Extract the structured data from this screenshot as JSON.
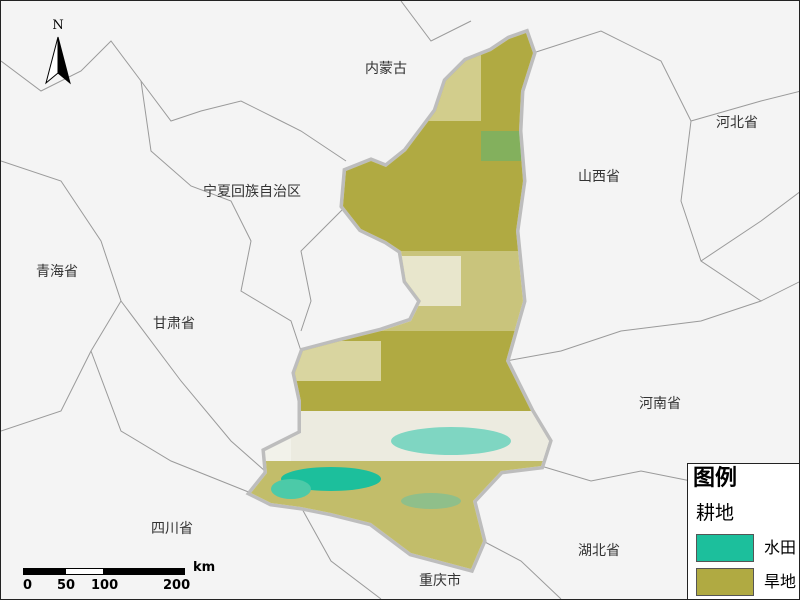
{
  "north_arrow": {
    "label": "N"
  },
  "provinces": {
    "nei_menggu": "内蒙古",
    "shanxi": "山西省",
    "hebei": "河北省",
    "ningxia": "宁夏回族自治区",
    "qinghai": "青海省",
    "gansu": "甘肃省",
    "henan": "河南省",
    "sichuan": "四川省",
    "hubei": "湖北省",
    "chongqing": "重庆市"
  },
  "legend": {
    "title": "图例",
    "category": "耕地",
    "items": [
      {
        "label": "水田",
        "color": "#1cbf9c"
      },
      {
        "label": "旱地",
        "color": "#b0aa42"
      }
    ]
  },
  "scale_bar": {
    "unit": "km",
    "ticks": [
      "0",
      "50",
      "100",
      "200"
    ]
  },
  "colors": {
    "paddy": "#1cbf9c",
    "dryland": "#b0aa42",
    "background": "#f4f4f4",
    "boundary": "#888888"
  }
}
